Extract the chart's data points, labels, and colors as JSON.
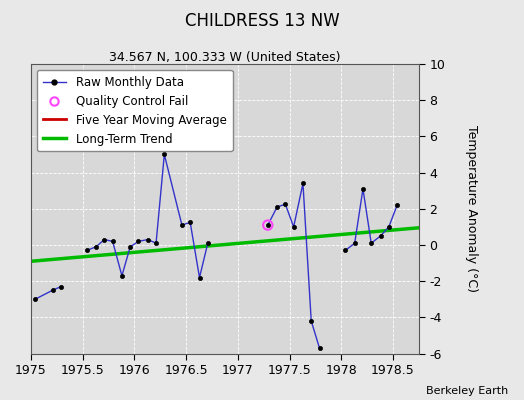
{
  "title": "CHILDRESS 13 NW",
  "subtitle": "34.567 N, 100.333 W (United States)",
  "credit": "Berkeley Earth",
  "xlim": [
    1975,
    1978.75
  ],
  "ylim": [
    -6,
    10
  ],
  "yticks": [
    -6,
    -4,
    -2,
    0,
    2,
    4,
    6,
    8,
    10
  ],
  "xticks": [
    1975,
    1975.5,
    1976,
    1976.5,
    1977,
    1977.5,
    1978,
    1978.5
  ],
  "ylabel": "Temperature Anomaly (°C)",
  "plot_bg_color": "#d8d8d8",
  "fig_bg_color": "#e8e8e8",
  "raw_segments": [
    {
      "x": [
        1975.04,
        1975.21,
        1975.29
      ],
      "y": [
        -3.0,
        -2.5,
        -2.3
      ]
    },
    {
      "x": [
        1975.54,
        1975.63,
        1975.71,
        1975.79,
        1975.88,
        1975.96,
        1976.04,
        1976.13,
        1976.21,
        1976.29,
        1976.46,
        1976.54,
        1976.63,
        1976.71
      ],
      "y": [
        -0.3,
        -0.1,
        0.3,
        0.2,
        -1.7,
        -0.1,
        0.2,
        0.3,
        0.1,
        5.0,
        1.1,
        1.25,
        -1.8,
        0.1
      ]
    },
    {
      "x": [
        1977.29,
        1977.38,
        1977.46,
        1977.54,
        1977.63,
        1977.71,
        1977.79
      ],
      "y": [
        1.1,
        2.1,
        2.25,
        1.0,
        3.4,
        -4.2,
        -5.7
      ]
    },
    {
      "x": [
        1978.04,
        1978.13,
        1978.21,
        1978.29,
        1978.38,
        1978.46,
        1978.54
      ],
      "y": [
        -0.3,
        0.1,
        3.1,
        0.1,
        0.5,
        1.0,
        2.2
      ]
    }
  ],
  "qc_fail_x": [
    1977.29
  ],
  "qc_fail_y": [
    1.1
  ],
  "trend_x": [
    1975.0,
    1978.75
  ],
  "trend_y": [
    -0.9,
    0.95
  ],
  "raw_color": "#3333cc",
  "raw_marker_color": "#000000",
  "qc_color": "#ff44ff",
  "trend_color": "#00bb00",
  "moving_avg_color": "#cc0000",
  "legend_fontsize": 8.5,
  "title_fontsize": 12,
  "subtitle_fontsize": 9,
  "tick_fontsize": 9
}
